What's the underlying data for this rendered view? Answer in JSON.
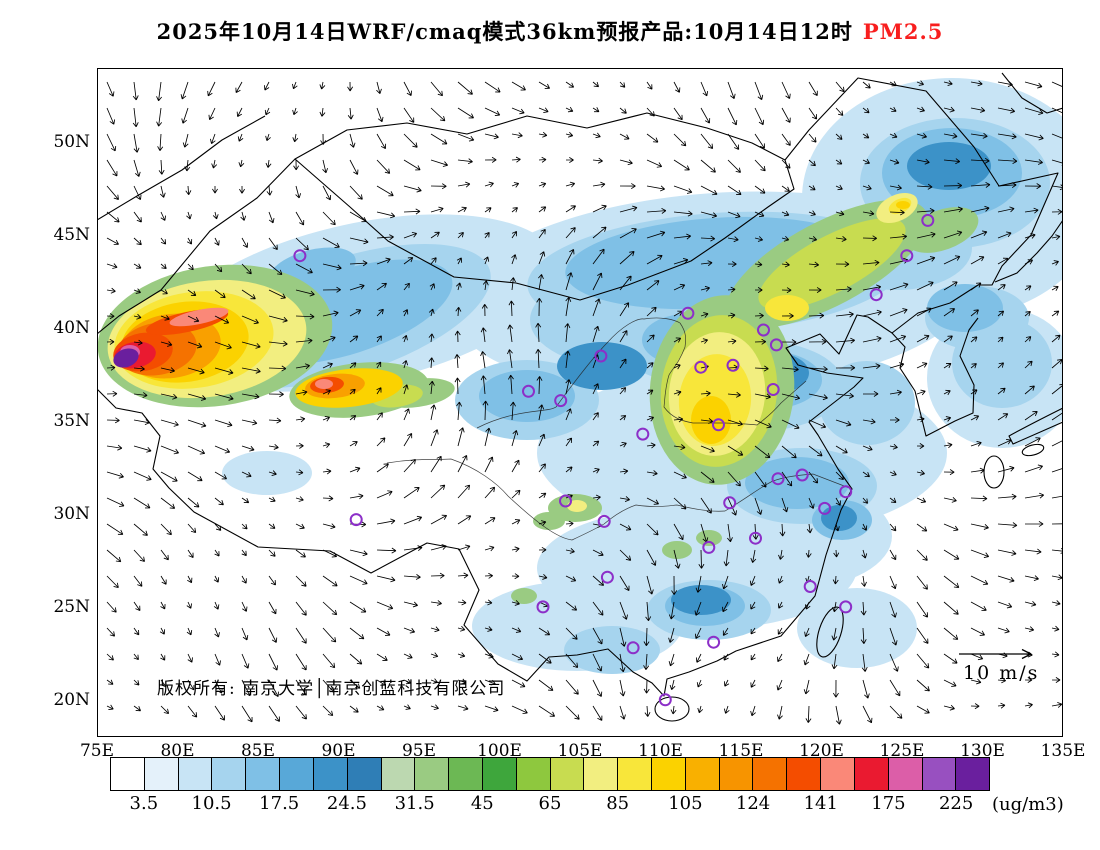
{
  "title": {
    "text": "2025年10月14日WRF/cmaq模式36km预报产品:10月14日12时",
    "pollutant": "PM2.5"
  },
  "map": {
    "lat_labels": [
      "50N",
      "45N",
      "40N",
      "35N",
      "30N",
      "25N",
      "20N"
    ],
    "lon_labels": [
      "75E",
      "80E",
      "85E",
      "90E",
      "95E",
      "100E",
      "105E",
      "110E",
      "115E",
      "120E",
      "125E",
      "130E",
      "135E"
    ],
    "copyright": "版权所有: 南京大学│南京创蓝科技有限公司",
    "wind_legend": "10 m/s",
    "city_markers": [
      [
        87.6,
        43.9
      ],
      [
        91.1,
        29.7
      ],
      [
        101.8,
        36.6
      ],
      [
        103.8,
        36.1
      ],
      [
        106.3,
        38.5
      ],
      [
        108.9,
        34.3
      ],
      [
        111.7,
        40.8
      ],
      [
        112.5,
        37.9
      ],
      [
        114.5,
        38.0
      ],
      [
        116.4,
        39.9
      ],
      [
        117.2,
        39.1
      ],
      [
        117.0,
        36.7
      ],
      [
        113.6,
        34.8
      ],
      [
        123.4,
        41.8
      ],
      [
        125.3,
        43.9
      ],
      [
        126.6,
        45.8
      ],
      [
        104.1,
        30.7
      ],
      [
        106.5,
        29.6
      ],
      [
        114.3,
        30.6
      ],
      [
        117.3,
        31.9
      ],
      [
        118.8,
        32.1
      ],
      [
        121.5,
        31.2
      ],
      [
        120.2,
        30.3
      ],
      [
        115.9,
        28.7
      ],
      [
        113.0,
        28.2
      ],
      [
        106.7,
        26.6
      ],
      [
        102.7,
        25.0
      ],
      [
        108.3,
        22.8
      ],
      [
        113.3,
        23.1
      ],
      [
        119.3,
        26.1
      ],
      [
        110.3,
        20.0
      ],
      [
        121.5,
        25.0
      ]
    ]
  },
  "colorbar": {
    "unit": "(ug/m3)",
    "tick_labels": [
      "3.5",
      "10.5",
      "17.5",
      "24.5",
      "31.5",
      "45",
      "65",
      "85",
      "105",
      "124",
      "141",
      "175",
      "225"
    ],
    "colors": [
      "#ffffff",
      "#e4f1fa",
      "#c8e4f5",
      "#a6d4ee",
      "#7fc0e6",
      "#58a8d8",
      "#3c92c8",
      "#2f7eb6",
      "#bcd8b0",
      "#9acb82",
      "#6cb854",
      "#3ea63c",
      "#8ec83e",
      "#c8dc50",
      "#f2ee80",
      "#f8e63a",
      "#fbd200",
      "#f9b000",
      "#f79400",
      "#f57200",
      "#f44d00",
      "#fa8878",
      "#ea1a30",
      "#dc5ea8",
      "#9850c0",
      "#6a1f9e"
    ]
  },
  "colors": {
    "title_highlight": "#f81e1e",
    "city_marker": "#8c2fc8",
    "vector": "#000000"
  }
}
